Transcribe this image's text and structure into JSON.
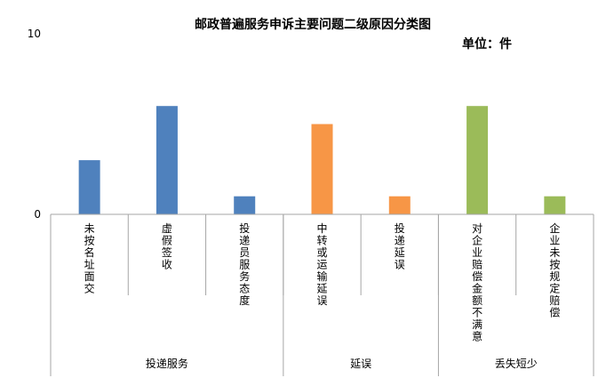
{
  "chart_data": {
    "type": "bar",
    "title": "邮政普遍服务申诉主要问题二级原因分类图",
    "unit_label": "单位：件",
    "ylim": [
      0,
      10
    ],
    "y_ticks": [
      0,
      10
    ],
    "grid": false,
    "categories": [
      "未按名址面交",
      "虚假签收",
      "投递员服务态度",
      "中转或运输延误",
      "投递延误",
      "对企业赔偿金额不满意",
      "企业未按规定赔偿"
    ],
    "values": [
      3,
      6,
      1,
      5,
      1,
      6,
      1
    ],
    "bar_colors": [
      "#4f81bd",
      "#4f81bd",
      "#4f81bd",
      "#f79646",
      "#f79646",
      "#9bbb59",
      "#9bbb59"
    ],
    "groups": [
      {
        "label": "投递服务",
        "count": 3
      },
      {
        "label": "延误",
        "count": 2
      },
      {
        "label": "丢失短少",
        "count": 2
      }
    ]
  },
  "colors": {
    "axis": "#a6a6a6",
    "background": "#ffffff"
  }
}
